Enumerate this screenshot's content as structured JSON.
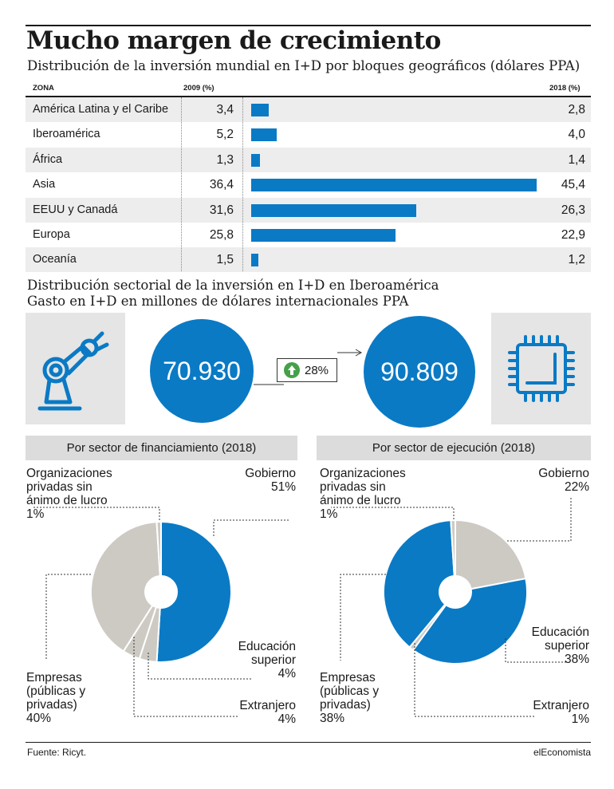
{
  "title": "Mucho margen de crecimiento",
  "subtitle1": "Distribución de la inversión mundial en I+D por bloques geográficos (dólares PPA)",
  "table": {
    "col_zone": "ZONA",
    "col_2009": "2009 (%)",
    "col_2018": "2018 (%)",
    "bar_color": "#0a7ac5"
  },
  "chart_data": [
    {
      "type": "bar",
      "title": "Distribución de la inversión mundial en I+D por bloques geográficos (dólares PPA)",
      "categories": [
        "América Latina y el Caribe",
        "Iberoamérica",
        "África",
        "Asia",
        "EEUU y Canadá",
        "Europa",
        "Oceanía"
      ],
      "series": [
        {
          "name": "2009 (%)",
          "values": [
            3.4,
            5.2,
            1.3,
            36.4,
            31.6,
            25.8,
            1.5
          ],
          "labels": [
            "3,4",
            "5,2",
            "1,3",
            "36,4",
            "31,6",
            "25,8",
            "1,5"
          ]
        },
        {
          "name": "2018 (%)",
          "values": [
            2.8,
            4.0,
            1.4,
            45.4,
            26.3,
            22.9,
            1.2
          ],
          "labels": [
            "2,8",
            "4,0",
            "1,4",
            "45,4",
            "26,3",
            "22,9",
            "1,2"
          ]
        }
      ],
      "bars_series": "2018 (%)",
      "xlim": [
        0,
        45.4
      ]
    },
    {
      "type": "pie",
      "title": "Por sector de financiamiento (2018)",
      "slices": [
        {
          "label": "Gobierno",
          "value": 51,
          "value_label": "51%",
          "color": "#0a7ac5"
        },
        {
          "label": "Educación superior",
          "value": 4,
          "value_label": "4%",
          "color": "#cdcac4"
        },
        {
          "label": "Extranjero",
          "value": 4,
          "value_label": "4%",
          "color": "#cdcac4"
        },
        {
          "label": "Empresas (públicas y privadas)",
          "value": 40,
          "value_label": "40%",
          "color": "#cdcac4"
        },
        {
          "label": "Organizaciones privadas sin ánimo de lucro",
          "value": 1,
          "value_label": "1%",
          "color": "#cdcac4"
        }
      ]
    },
    {
      "type": "pie",
      "title": "Por sector de ejecución (2018)",
      "slices": [
        {
          "label": "Gobierno",
          "value": 22,
          "value_label": "22%",
          "color": "#cdcac4"
        },
        {
          "label": "Educación superior",
          "value": 38,
          "value_label": "38%",
          "color": "#0a7ac5"
        },
        {
          "label": "Extranjero",
          "value": 1,
          "value_label": "1%",
          "color": "#cdcac4"
        },
        {
          "label": "Empresas (públicas y privadas)",
          "value": 38,
          "value_label": "38%",
          "color": "#0a7ac5"
        },
        {
          "label": "Organizaciones privadas sin ánimo de lucro",
          "value": 1,
          "value_label": "1%",
          "color": "#cdcac4"
        }
      ]
    }
  ],
  "sectorial": {
    "subtitle2": "Distribución sectorial de la inversión en I+D en Iberoamérica",
    "subtitle3": "Gasto en I+D en millones de dólares internacionales PPA",
    "value_before": "70.930",
    "value_after": "90.809",
    "growth": "28%",
    "icons": [
      "robot-arm-icon",
      "chip-icon",
      "arrow-up-icon"
    ],
    "accent_color": "#0a7ac5",
    "growth_color": "#46a04a"
  },
  "pie_labels": {
    "left": {
      "section": "Por sector de financiamiento (2018)",
      "org_line1": "Organizaciones",
      "org_line2": "privadas sin",
      "org_line3": "ánimo de lucro",
      "org_pct": "1%",
      "gob": "Gobierno",
      "gob_pct": "51%",
      "edu_line1": "Educación",
      "edu_line2": "superior",
      "edu_pct": "4%",
      "ext": "Extranjero",
      "ext_pct": "4%",
      "emp_line1": "Empresas",
      "emp_line2": "(públicas y",
      "emp_line3": "privadas)",
      "emp_pct": "40%"
    },
    "right": {
      "section": "Por sector de ejecución (2018)",
      "org_line1": "Organizaciones",
      "org_line2": "privadas sin",
      "org_line3": "ánimo de lucro",
      "org_pct": "1%",
      "gob": "Gobierno",
      "gob_pct": "22%",
      "edu_line1": "Educación",
      "edu_line2": "superior",
      "edu_pct": "38%",
      "ext": "Extranjero",
      "ext_pct": "1%",
      "emp_line1": "Empresas",
      "emp_line2": "(públicas y",
      "emp_line3": "privadas)",
      "emp_pct": "38%"
    }
  },
  "footer": {
    "source": "Fuente: Ricyt.",
    "brand": "elEconomista"
  }
}
